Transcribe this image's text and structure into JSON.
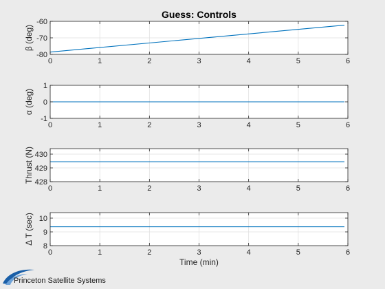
{
  "figure": {
    "background": "#ebebeb",
    "line_color": "#0072bd",
    "logo_text": "Princeton Satellite Systems",
    "logo_color": "#1a5fa8"
  },
  "chart_data": [
    {
      "type": "line",
      "title": "Guess: Controls",
      "xlabel": "",
      "ylabel": "β (deg)",
      "xlim": [
        0,
        6
      ],
      "ylim": [
        -80,
        -60
      ],
      "xticks": [
        0,
        1,
        2,
        3,
        4,
        5,
        6
      ],
      "xtick_labels": [
        "0",
        "1",
        "2",
        "3",
        "4",
        "5",
        "6"
      ],
      "yticks": [
        -80,
        -70,
        -60
      ],
      "ytick_labels": [
        "-80",
        "-70",
        "-60"
      ],
      "grid": true,
      "series": [
        {
          "x": [
            0,
            5.93
          ],
          "y": [
            -78.6,
            -62.3
          ]
        }
      ]
    },
    {
      "type": "line",
      "title": "",
      "xlabel": "",
      "ylabel": "α (deg)",
      "xlim": [
        0,
        6
      ],
      "ylim": [
        -1,
        1
      ],
      "xticks": [
        0,
        1,
        2,
        3,
        4,
        5,
        6
      ],
      "xtick_labels": [
        "0",
        "1",
        "2",
        "3",
        "4",
        "5",
        "6"
      ],
      "yticks": [
        -1,
        0,
        1
      ],
      "ytick_labels": [
        "-1",
        "0",
        "1"
      ],
      "grid": true,
      "series": [
        {
          "x": [
            0,
            5.93
          ],
          "y": [
            0,
            0
          ]
        }
      ]
    },
    {
      "type": "line",
      "title": "",
      "xlabel": "",
      "ylabel": "Thrust (N)",
      "xlim": [
        0,
        6
      ],
      "ylim": [
        428,
        430.4
      ],
      "xticks": [
        0,
        1,
        2,
        3,
        4,
        5,
        6
      ],
      "xtick_labels": [
        "0",
        "1",
        "2",
        "3",
        "4",
        "5",
        "6"
      ],
      "yticks": [
        428,
        429,
        430
      ],
      "ytick_labels": [
        "428",
        "429",
        "430"
      ],
      "grid": true,
      "series": [
        {
          "x": [
            0,
            5.93
          ],
          "y": [
            429.45,
            429.45
          ]
        }
      ]
    },
    {
      "type": "line",
      "title": "",
      "xlabel": "Time (min)",
      "ylabel": "Δ T (sec)",
      "xlim": [
        0,
        6
      ],
      "ylim": [
        8,
        10.4
      ],
      "xticks": [
        0,
        1,
        2,
        3,
        4,
        5,
        6
      ],
      "xtick_labels": [
        "0",
        "1",
        "2",
        "3",
        "4",
        "5",
        "6"
      ],
      "yticks": [
        8,
        9,
        10
      ],
      "ytick_labels": [
        "8",
        "9",
        "10"
      ],
      "grid": true,
      "series": [
        {
          "x": [
            0,
            5.93
          ],
          "y": [
            9.37,
            9.37
          ]
        }
      ]
    }
  ]
}
